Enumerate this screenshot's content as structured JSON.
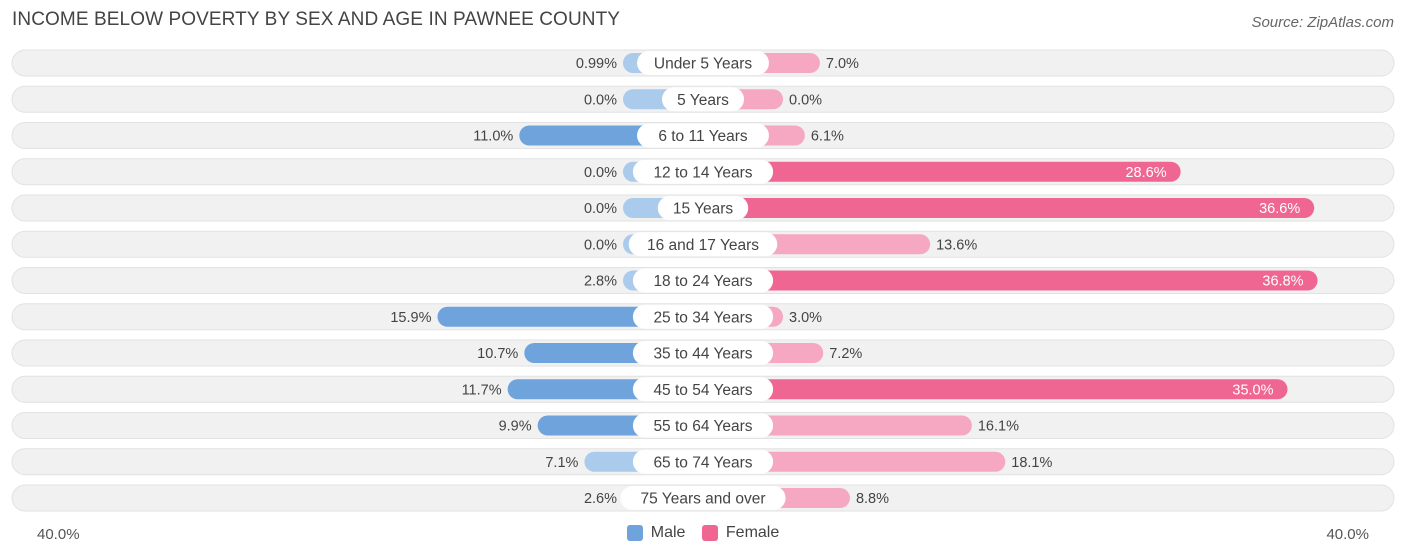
{
  "title": "INCOME BELOW POVERTY BY SEX AND AGE IN PAWNEE COUNTY",
  "source": "Source: ZipAtlas.com",
  "colors": {
    "male_strong": "#6fa3dc",
    "male_light": "#aacbec",
    "female_strong": "#f06693",
    "female_light": "#f6a7c1",
    "row_bg": "#f1f1f1"
  },
  "chart_data": {
    "type": "bar",
    "orientation": "horizontal-diverging",
    "categories": [
      "Under 5 Years",
      "5 Years",
      "6 to 11 Years",
      "12 to 14 Years",
      "15 Years",
      "16 and 17 Years",
      "18 to 24 Years",
      "25 to 34 Years",
      "35 to 44 Years",
      "45 to 54 Years",
      "55 to 64 Years",
      "65 to 74 Years",
      "75 Years and over"
    ],
    "series": [
      {
        "name": "Male",
        "values": [
          0.99,
          0.0,
          11.0,
          0.0,
          0.0,
          0.0,
          2.8,
          15.9,
          10.7,
          11.7,
          9.9,
          7.1,
          2.6
        ],
        "labels": [
          "0.99%",
          "0.0%",
          "11.0%",
          "0.0%",
          "0.0%",
          "0.0%",
          "2.8%",
          "15.9%",
          "10.7%",
          "11.7%",
          "9.9%",
          "7.1%",
          "2.6%"
        ]
      },
      {
        "name": "Female",
        "values": [
          7.0,
          0.0,
          6.1,
          28.6,
          36.6,
          13.6,
          36.8,
          3.0,
          7.2,
          35.0,
          16.1,
          18.1,
          8.8
        ],
        "labels": [
          "7.0%",
          "0.0%",
          "6.1%",
          "28.6%",
          "36.6%",
          "13.6%",
          "36.8%",
          "3.0%",
          "7.2%",
          "35.0%",
          "16.1%",
          "18.1%",
          "8.8%"
        ]
      }
    ],
    "xlim": [
      -40,
      40
    ],
    "axis_labels": {
      "left": "40.0%",
      "right": "40.0%"
    },
    "legend": {
      "placement": "bottom-center",
      "items": [
        "Male",
        "Female"
      ]
    }
  }
}
